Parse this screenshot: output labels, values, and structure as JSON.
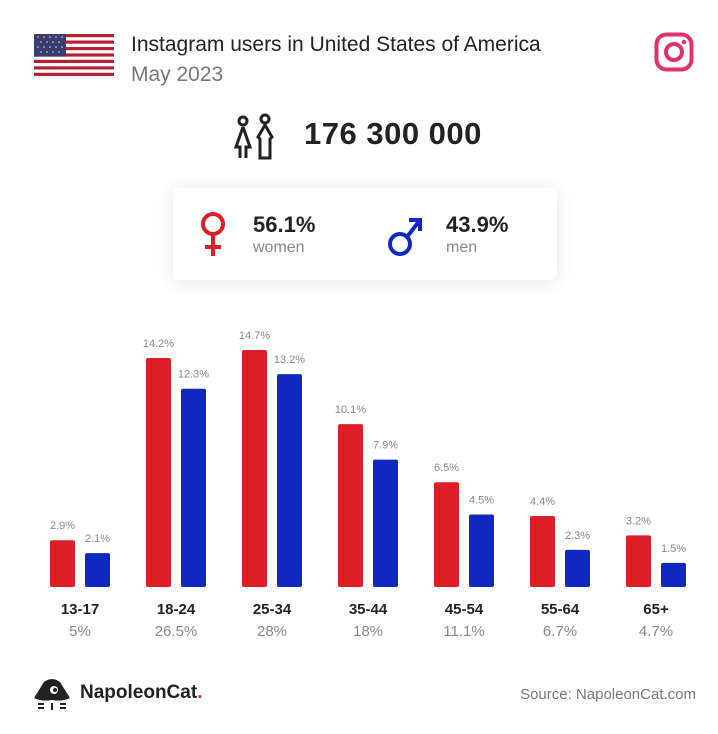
{
  "header": {
    "title": "Instagram users in United States of America",
    "subtitle": "May 2023",
    "flag_icon": "us-flag-icon",
    "platform_icon": "instagram-icon"
  },
  "summary": {
    "total_users": "176 300 000",
    "women": {
      "percent": "56.1%",
      "label": "women"
    },
    "men": {
      "percent": "43.9%",
      "label": "men"
    }
  },
  "colors": {
    "women": "#dc1f26",
    "men": "#0f28c0",
    "instagram": "#e1306c"
  },
  "chart_data": {
    "type": "bar",
    "categories": [
      "13-17",
      "18-24",
      "25-34",
      "35-44",
      "45-54",
      "55-64",
      "65+"
    ],
    "category_totals": [
      "5%",
      "26.5%",
      "28%",
      "18%",
      "11.1%",
      "6.7%",
      "4.7%"
    ],
    "series": [
      {
        "name": "women",
        "values": [
          2.9,
          14.2,
          14.7,
          10.1,
          6.5,
          4.4,
          3.2
        ],
        "labels": [
          "2.9%",
          "14.2%",
          "14.7%",
          "10.1%",
          "6.5%",
          "4.4%",
          "3.2%"
        ],
        "color": "#dc1f26"
      },
      {
        "name": "men",
        "values": [
          2.1,
          12.3,
          13.2,
          7.9,
          4.5,
          2.3,
          1.5
        ],
        "labels": [
          "2.1%",
          "12.3%",
          "13.2%",
          "7.9%",
          "4.5%",
          "2.3%",
          "1.5%"
        ],
        "color": "#0f28c0"
      }
    ],
    "ylim": [
      0,
      14.7
    ],
    "grid": false
  },
  "footer": {
    "brand_name": "NapoleonCat",
    "brand_dot": ".",
    "source": "Source: NapoleonCat.com"
  }
}
